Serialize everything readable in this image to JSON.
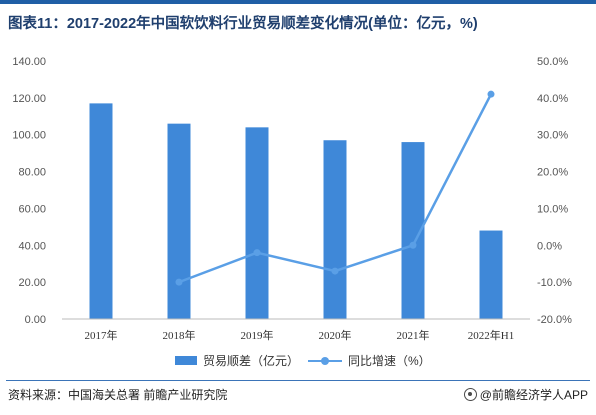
{
  "title": "图表11：2017-2022年中国软饮料行业贸易顺差变化情况(单位：亿元，%)",
  "source": "资料来源：中国海关总署 前瞻产业研究院",
  "brand": "@前瞻经济学人APP",
  "colors": {
    "bar": "#3f88d8",
    "line": "#5a9fe6",
    "title": "#1f3f6e",
    "rule": "#1f5fa6"
  },
  "chart_data": {
    "type": "bar+line",
    "categories": [
      "2017年",
      "2018年",
      "2019年",
      "2020年",
      "2021年",
      "2022年H1"
    ],
    "series": [
      {
        "name": "贸易顺差（亿元）",
        "type": "bar",
        "axis": "left",
        "values": [
          117.0,
          106.0,
          104.0,
          97.0,
          96.0,
          48.0
        ]
      },
      {
        "name": "同比增速（%）",
        "type": "line",
        "axis": "right",
        "values": [
          null,
          -10.0,
          -2.0,
          -7.0,
          0.0,
          41.0
        ]
      }
    ],
    "y_left": {
      "min": 0,
      "max": 140,
      "step": 20,
      "ticks": [
        "0.00",
        "20.00",
        "40.00",
        "60.00",
        "80.00",
        "100.00",
        "120.00",
        "140.00"
      ]
    },
    "y_right": {
      "min": -20,
      "max": 50,
      "step": 10,
      "ticks": [
        "-20.0%",
        "-10.0%",
        "0.0%",
        "10.0%",
        "20.0%",
        "30.0%",
        "40.0%",
        "50.0%"
      ]
    },
    "grid": false,
    "legend_position": "bottom-center"
  }
}
